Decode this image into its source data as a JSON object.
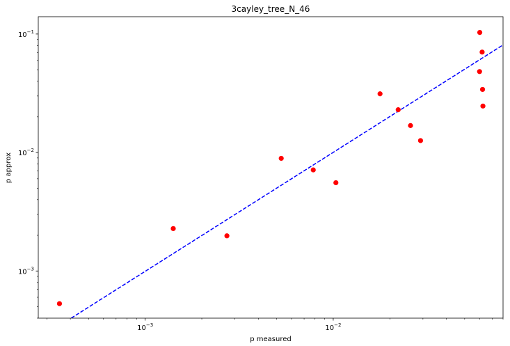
{
  "chart_data": {
    "type": "scatter",
    "title": "3cayley_tree_N_46",
    "xlabel": "p measured",
    "ylabel": "p approx",
    "xscale": "log",
    "yscale": "log",
    "xlim": [
      0.00027,
      0.08
    ],
    "ylim": [
      0.0004,
      0.14
    ],
    "x_major_ticks": [
      0.001,
      0.01
    ],
    "x_major_tick_labels": [
      "10",
      "10"
    ],
    "x_major_tick_exponents": [
      "−3",
      "−2"
    ],
    "y_major_ticks": [
      0.001,
      0.01,
      0.1
    ],
    "y_major_tick_labels": [
      "10",
      "10",
      "10"
    ],
    "y_major_tick_exponents": [
      "−3",
      "−2",
      "−1"
    ],
    "grid": false,
    "colors": {
      "points": "#ff0000",
      "fit_line": "#0000ff"
    },
    "series": [
      {
        "kind": "points",
        "x": [
          0.00035,
          0.00141,
          0.00272,
          0.00529,
          0.00783,
          0.01033,
          0.01774,
          0.02216,
          0.02576,
          0.02913,
          0.06016,
          0.06192,
          0.06001,
          0.06224,
          0.06253
        ],
        "y": [
          0.00053,
          0.00228,
          0.00198,
          0.00893,
          0.00713,
          0.00556,
          0.03129,
          0.02296,
          0.01688,
          0.01261,
          0.10312,
          0.0704,
          0.04821,
          0.03406,
          0.02467
        ]
      },
      {
        "kind": "fit-line",
        "style": "dashed",
        "x": [
          0.000404,
          0.08
        ],
        "y": [
          0.0004,
          0.0809
        ]
      }
    ]
  }
}
